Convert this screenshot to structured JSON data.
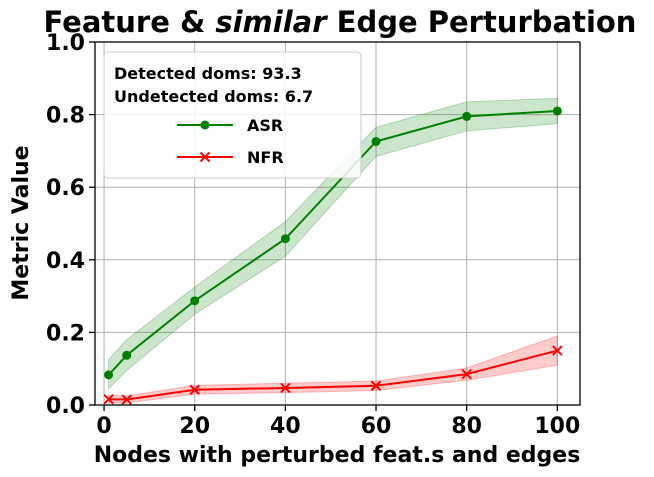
{
  "chart_data": {
    "type": "line",
    "title_prefix": "Feature & ",
    "title_emph": "similar",
    "title_suffix": " Edge Perturbation",
    "xlabel": "Nodes with perturbed feat.s and edges",
    "ylabel": "Metric Value",
    "xlim": [
      -2,
      105
    ],
    "ylim": [
      0,
      1
    ],
    "xticks": [
      0,
      20,
      40,
      60,
      80,
      100
    ],
    "yticks": [
      0.0,
      0.2,
      0.4,
      0.6,
      0.8,
      1.0
    ],
    "xtick_labels": [
      "0",
      "20",
      "40",
      "60",
      "80",
      "100"
    ],
    "ytick_labels": [
      "0.0",
      "0.2",
      "0.4",
      "0.6",
      "0.8",
      "1.0"
    ],
    "grid": true,
    "legend_position": "upper-left",
    "legend_notes": [
      "Detected doms: 93.3",
      "Undetected doms: 6.7"
    ],
    "x": [
      1,
      5,
      20,
      40,
      60,
      80,
      100
    ],
    "series": [
      {
        "name": "ASR",
        "color": "#008000",
        "marker": "circle",
        "values": [
          0.083,
          0.137,
          0.287,
          0.458,
          0.726,
          0.795,
          0.81
        ],
        "lower": [
          0.045,
          0.095,
          0.25,
          0.41,
          0.685,
          0.755,
          0.775
        ],
        "upper": [
          0.125,
          0.18,
          0.325,
          0.505,
          0.765,
          0.835,
          0.845
        ]
      },
      {
        "name": "NFR",
        "color": "#ff0000",
        "marker": "x",
        "values": [
          0.016,
          0.015,
          0.042,
          0.047,
          0.053,
          0.085,
          0.15
        ],
        "lower": [
          0.006,
          0.006,
          0.03,
          0.034,
          0.04,
          0.068,
          0.11
        ],
        "upper": [
          0.026,
          0.025,
          0.054,
          0.06,
          0.066,
          0.102,
          0.19
        ]
      }
    ]
  }
}
